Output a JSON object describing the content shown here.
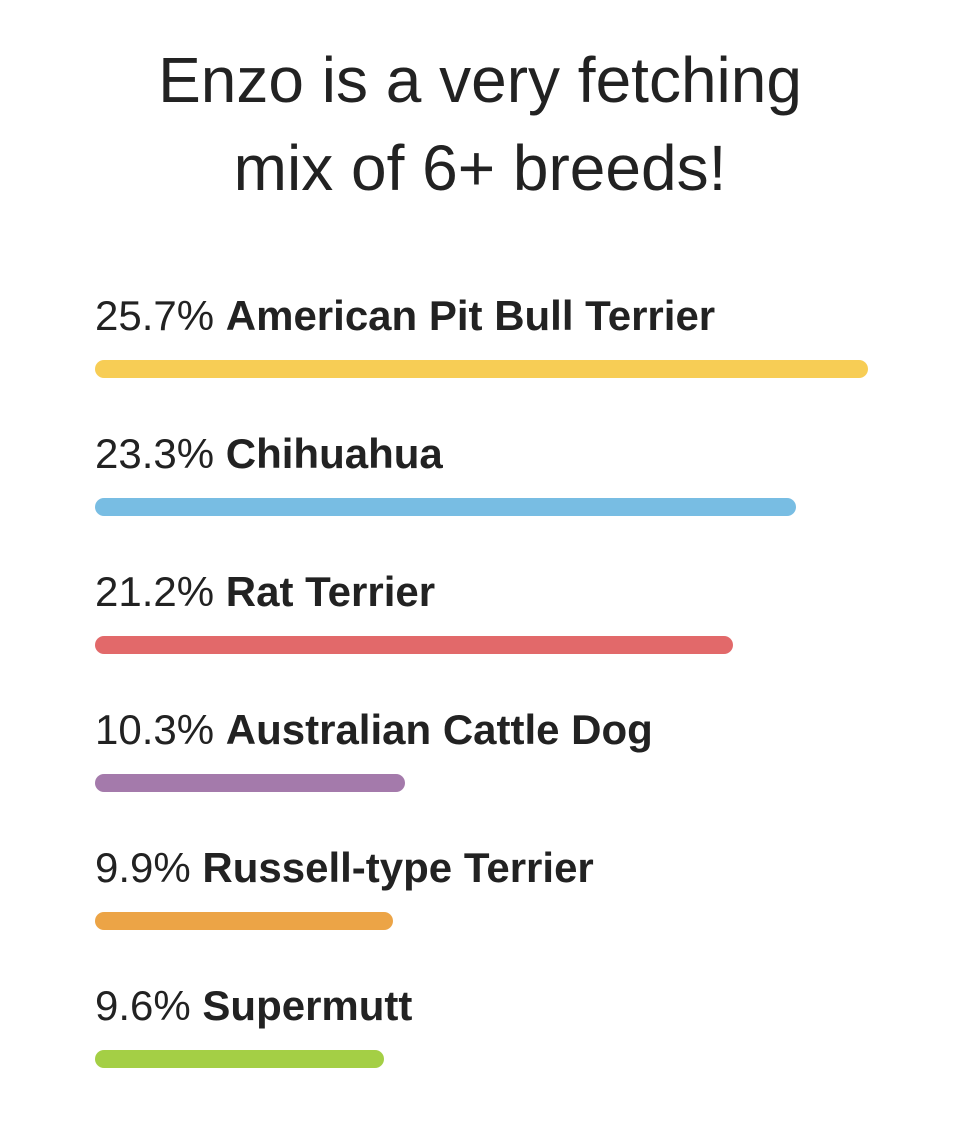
{
  "chart_data": {
    "type": "bar",
    "orientation": "horizontal",
    "title_lines": [
      "Enzo is a very fetching",
      "mix of 6+ breeds!"
    ],
    "grid": false,
    "legend": "none",
    "categories": [
      "American Pit Bull Terrier",
      "Chihuahua",
      "Rat Terrier",
      "Australian Cattle Dog",
      "Russell-type Terrier",
      "Supermutt"
    ],
    "values": [
      25.7,
      23.3,
      21.2,
      10.3,
      9.9,
      9.6
    ],
    "value_labels": [
      "25.7%",
      "23.3%",
      "21.2%",
      "10.3%",
      "9.9%",
      "9.6%"
    ],
    "colors": [
      "#f7cd55",
      "#78bde3",
      "#e2696a",
      "#a47aab",
      "#eca446",
      "#a4cf45"
    ]
  }
}
